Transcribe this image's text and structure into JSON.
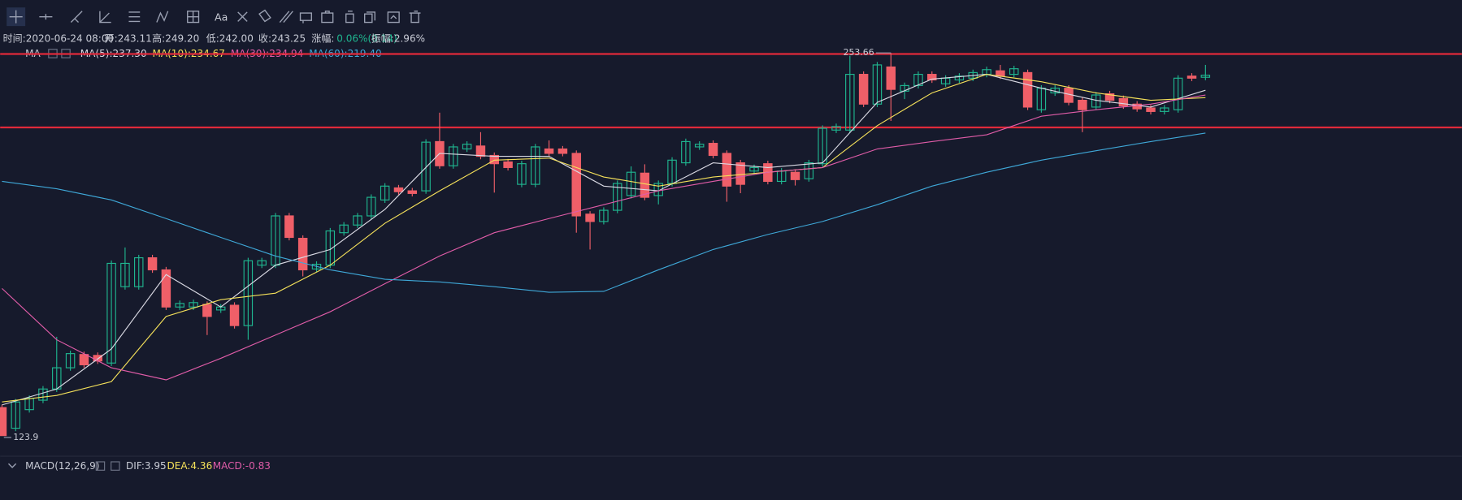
{
  "toolbar": {
    "text_tool": "Aa"
  },
  "info": {
    "time": "时间:2020-06-24 08:00",
    "open": "开:243.11",
    "high": "高:249.20",
    "low": "低:242.00",
    "close": "收:243.25",
    "change_label": "涨幅:",
    "change": "0.06%(0.14)",
    "amplitude": "振幅:2.96%"
  },
  "chart_data": {
    "type": "candlestick",
    "indicator": "MA",
    "ylim": [
      116.9,
      257.4
    ],
    "up_color": "#1fb58f",
    "down_color": "#ef5f68",
    "hline_color": "#e0293a",
    "hlines": [
      253.3,
      228.4
    ],
    "high_label": "253.66",
    "low_label": "123.9",
    "candles": [
      [
        133.4,
        134.4,
        123.9,
        123.9
      ],
      [
        126.4,
        136.3,
        125.4,
        135.3
      ],
      [
        132.7,
        137.5,
        131.7,
        136.5
      ],
      [
        135.9,
        140.7,
        134.9,
        139.7
      ],
      [
        139.7,
        157.4,
        138.7,
        146.9
      ],
      [
        146.9,
        152.7,
        145.9,
        151.7
      ],
      [
        151.4,
        152.4,
        146.9,
        147.9
      ],
      [
        151.1,
        152.1,
        148.2,
        149.2
      ],
      [
        148.5,
        183.3,
        147.5,
        182.3
      ],
      [
        174.4,
        187.7,
        173.4,
        182.3
      ],
      [
        174.4,
        185.2,
        173.4,
        184.2
      ],
      [
        184.2,
        185.2,
        179.1,
        180.1
      ],
      [
        180.1,
        181.1,
        166.5,
        167.5
      ],
      [
        167.5,
        169.7,
        166.5,
        168.7
      ],
      [
        167.5,
        170.0,
        166.5,
        169.0
      ],
      [
        168.4,
        169.4,
        158.0,
        164.3
      ],
      [
        166.5,
        168.5,
        165.5,
        167.5
      ],
      [
        168.1,
        169.1,
        160.2,
        161.2
      ],
      [
        161.2,
        184.2,
        156.4,
        183.2
      ],
      [
        181.7,
        184.2,
        180.7,
        183.2
      ],
      [
        181.7,
        199.4,
        180.7,
        198.4
      ],
      [
        198.4,
        199.4,
        190.1,
        191.1
      ],
      [
        190.8,
        191.8,
        177.9,
        180.1
      ],
      [
        180.4,
        183.0,
        179.4,
        182.0
      ],
      [
        181.7,
        194.3,
        180.7,
        193.3
      ],
      [
        192.7,
        196.3,
        191.7,
        195.3
      ],
      [
        195.3,
        199.4,
        194.3,
        198.4
      ],
      [
        198.4,
        205.7,
        197.4,
        204.7
      ],
      [
        203.8,
        209.5,
        202.8,
        208.5
      ],
      [
        207.9,
        208.9,
        205.6,
        206.6
      ],
      [
        206.9,
        207.9,
        205.0,
        206.0
      ],
      [
        206.9,
        224.4,
        205.9,
        223.4
      ],
      [
        223.6,
        233.4,
        214.4,
        215.4
      ],
      [
        215.4,
        222.8,
        214.4,
        221.8
      ],
      [
        221.1,
        223.7,
        220.1,
        222.7
      ],
      [
        222.1,
        226.8,
        217.6,
        218.6
      ],
      [
        218.9,
        219.9,
        206.3,
        216.1
      ],
      [
        216.7,
        217.7,
        213.8,
        214.8
      ],
      [
        209.1,
        217.1,
        208.1,
        216.1
      ],
      [
        209.1,
        222.8,
        208.1,
        221.8
      ],
      [
        221.1,
        224.0,
        218.6,
        219.6
      ],
      [
        221.1,
        222.1,
        218.6,
        219.6
      ],
      [
        219.6,
        220.6,
        192.7,
        198.4
      ],
      [
        199.0,
        200.0,
        187.0,
        196.5
      ],
      [
        196.5,
        201.3,
        195.5,
        200.3
      ],
      [
        200.3,
        210.4,
        199.3,
        209.4
      ],
      [
        205.3,
        215.2,
        204.3,
        213.2
      ],
      [
        212.9,
        215.9,
        203.7,
        204.7
      ],
      [
        205.3,
        210.4,
        202.3,
        209.4
      ],
      [
        209.4,
        218.3,
        208.4,
        217.3
      ],
      [
        216.4,
        224.6,
        215.4,
        223.6
      ],
      [
        221.8,
        223.7,
        220.8,
        222.7
      ],
      [
        223.0,
        224.0,
        217.9,
        218.9
      ],
      [
        219.6,
        220.6,
        203.2,
        208.5
      ],
      [
        216.4,
        217.4,
        206.1,
        209.1
      ],
      [
        213.6,
        215.8,
        212.6,
        214.8
      ],
      [
        216.1,
        217.1,
        209.1,
        210.1
      ],
      [
        210.1,
        214.6,
        209.1,
        213.6
      ],
      [
        213.2,
        214.2,
        208.7,
        210.7
      ],
      [
        211.0,
        217.4,
        210.0,
        216.4
      ],
      [
        216.1,
        229.1,
        215.1,
        228.1
      ],
      [
        227.5,
        229.7,
        226.5,
        228.7
      ],
      [
        227.5,
        252.7,
        226.5,
        246.4
      ],
      [
        246.4,
        247.4,
        235.3,
        236.3
      ],
      [
        236.3,
        250.6,
        235.3,
        249.6
      ],
      [
        248.9,
        253.66,
        230.6,
        241.3
      ],
      [
        240.7,
        243.6,
        238.0,
        242.6
      ],
      [
        242.6,
        247.4,
        241.6,
        246.4
      ],
      [
        246.4,
        247.4,
        243.5,
        244.5
      ],
      [
        243.2,
        246.1,
        242.2,
        245.1
      ],
      [
        244.5,
        246.8,
        243.5,
        245.8
      ],
      [
        245.1,
        248.0,
        244.1,
        247.0
      ],
      [
        246.4,
        249.0,
        245.4,
        248.0
      ],
      [
        247.6,
        249.6,
        244.8,
        245.8
      ],
      [
        246.4,
        249.3,
        245.4,
        248.3
      ],
      [
        247.0,
        248.0,
        234.3,
        235.3
      ],
      [
        234.4,
        242.7,
        233.4,
        241.7
      ],
      [
        240.1,
        242.7,
        239.1,
        241.7
      ],
      [
        241.7,
        242.7,
        235.9,
        236.9
      ],
      [
        237.6,
        238.6,
        226.8,
        234.4
      ],
      [
        235.3,
        240.4,
        234.3,
        239.4
      ],
      [
        239.8,
        240.8,
        236.6,
        237.6
      ],
      [
        238.2,
        239.2,
        234.7,
        235.7
      ],
      [
        236.3,
        237.3,
        233.7,
        234.7
      ],
      [
        235.0,
        236.0,
        232.8,
        233.8
      ],
      [
        233.8,
        236.0,
        232.8,
        235.0
      ],
      [
        234.4,
        246.1,
        233.4,
        245.1
      ],
      [
        245.8,
        246.8,
        244.1,
        245.1
      ],
      [
        245.4,
        249.6,
        244.4,
        246.1
      ]
    ],
    "x": [
      0,
      4,
      8,
      12,
      16,
      20,
      24,
      28,
      32,
      36,
      40,
      44,
      48,
      52,
      56,
      60,
      64,
      68,
      72,
      76,
      80,
      84,
      88
    ],
    "series": [
      {
        "name": "MA(5):237.30",
        "color": "#d9d9e3",
        "values": [
          134.3,
          139.7,
          153.3,
          178.5,
          167.5,
          181.7,
          187.0,
          200.6,
          219.6,
          218.6,
          218.6,
          208.5,
          206.9,
          216.4,
          214.8,
          216.4,
          236.9,
          244.8,
          246.4,
          241.7,
          237.6,
          235.3,
          241.0
        ]
      },
      {
        "name": "MA(10):234.67",
        "color": "#f5e15a",
        "values": [
          135.3,
          137.5,
          142.2,
          164.3,
          170.0,
          172.2,
          181.7,
          195.9,
          206.9,
          217.3,
          218.0,
          211.6,
          208.5,
          211.6,
          213.2,
          214.8,
          229.0,
          240.1,
          246.4,
          243.9,
          240.1,
          237.6,
          238.5
        ]
      },
      {
        "name": "MA(30):234.94",
        "color": "#e05ca8",
        "values": [
          173.8,
          156.4,
          146.9,
          142.8,
          150.1,
          158.0,
          165.9,
          175.4,
          184.8,
          192.7,
          197.5,
          202.2,
          206.9,
          210.1,
          213.2,
          214.8,
          221.1,
          223.6,
          225.9,
          232.2,
          234.4,
          236.3,
          239.4
        ]
      },
      {
        "name": "MA(60):219.40",
        "color": "#3fa8d8",
        "values": [
          210.1,
          207.6,
          203.8,
          197.5,
          191.1,
          184.8,
          180.1,
          176.9,
          176.0,
          174.4,
          172.5,
          172.8,
          180.1,
          187.0,
          192.1,
          196.5,
          202.2,
          208.5,
          213.2,
          217.3,
          220.5,
          223.6,
          226.5
        ]
      }
    ]
  },
  "macd": {
    "name": "MACD(12,26,9)",
    "dif": "DIF:3.95",
    "dea": "DEA:4.36",
    "macd": "MACD:-0.83"
  }
}
